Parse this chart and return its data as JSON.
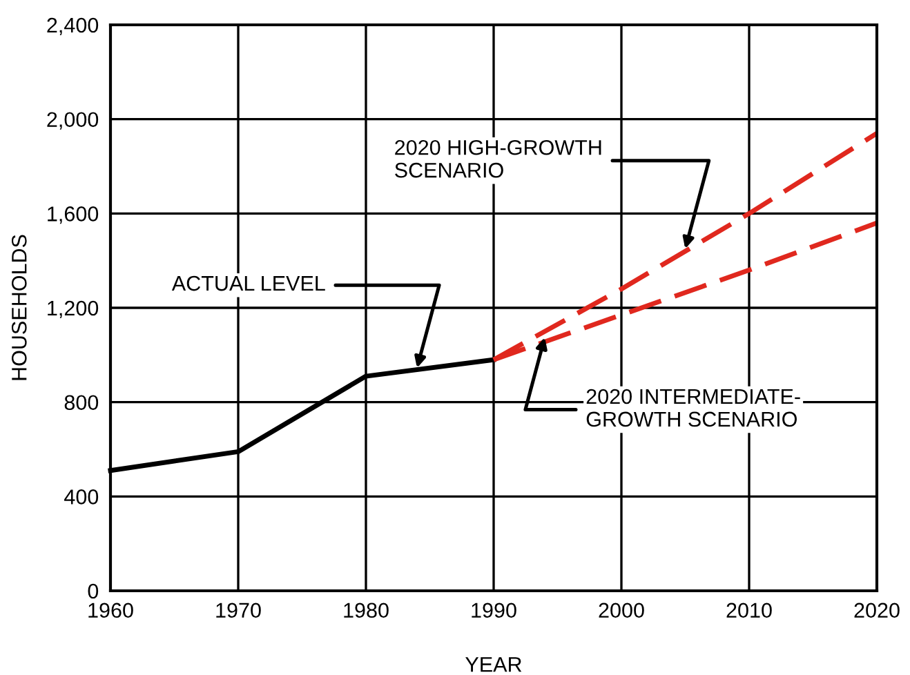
{
  "chart_data": {
    "type": "line",
    "xlabel": "YEAR",
    "ylabel": "HOUSEHOLDS",
    "xlim": [
      1960,
      2020
    ],
    "ylim": [
      0,
      2400
    ],
    "xticks": [
      1960,
      1970,
      1980,
      1990,
      2000,
      2010,
      2020
    ],
    "yticks": [
      0,
      {
        "value": 400,
        "label": "400"
      },
      {
        "value": 800,
        "label": "800"
      },
      {
        "value": 1200,
        "label": "1,200"
      },
      {
        "value": 1600,
        "label": "1,600"
      },
      {
        "value": 2000,
        "label": "2,000"
      },
      {
        "value": 2400,
        "label": "2,400"
      }
    ],
    "grid": true,
    "legend": false,
    "series": [
      {
        "color": "#000000",
        "line_style": "solid",
        "x": [
          1960,
          1970,
          1980,
          1990
        ],
        "values": [
          510,
          590,
          910,
          980
        ]
      },
      {
        "color": "#e0281e",
        "line_style": "dashed",
        "x": [
          1990,
          2000,
          2010,
          2020
        ],
        "values": [
          980,
          1280,
          1600,
          1940
        ]
      },
      {
        "color": "#e0281e",
        "line_style": "dashed",
        "x": [
          1990,
          2000,
          2010,
          2020
        ],
        "values": [
          980,
          1170,
          1360,
          1560
        ]
      }
    ],
    "annotations": [
      {
        "text": "ACTUAL LEVEL",
        "x": 1984,
        "y": 945
      },
      {
        "text": "2020 HIGH-GROWTH\nSCENARIO",
        "x": 2005,
        "y": 1450
      },
      {
        "text": "2020 INTERMEDIATE-\nGROWTH SCENARIO",
        "x": 1994,
        "y": 1075
      }
    ]
  }
}
